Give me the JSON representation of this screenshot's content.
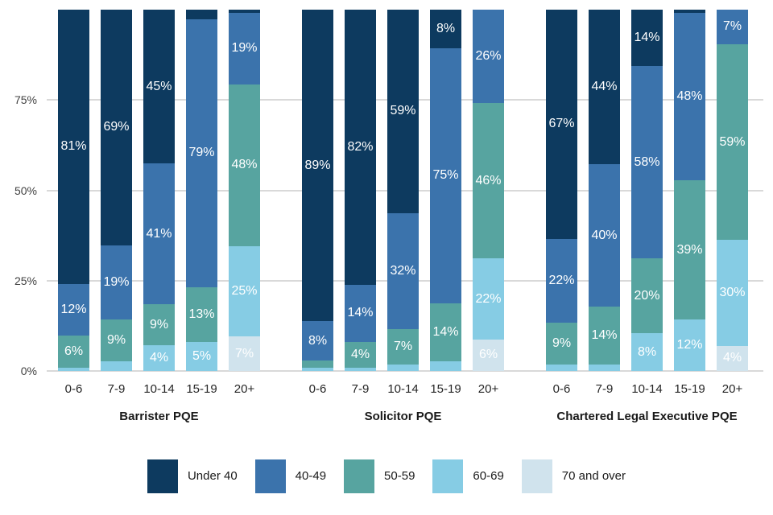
{
  "chart_data": {
    "type": "bar",
    "stacked": true,
    "orientation": "vertical",
    "unit": "%",
    "ylim": [
      0,
      100
    ],
    "grid": true,
    "legend_position": "bottom",
    "yticks": [
      {
        "label": "0%",
        "value": 0
      },
      {
        "label": "25%",
        "value": 25
      },
      {
        "label": "50%",
        "value": 50
      },
      {
        "label": "75%",
        "value": 75
      }
    ],
    "bands": [
      {
        "name": "Under 40",
        "color": "#0d3a5f"
      },
      {
        "name": "40-49",
        "color": "#3b73ac"
      },
      {
        "name": "50-59",
        "color": "#57a4a0"
      },
      {
        "name": "60-69",
        "color": "#86cce4"
      },
      {
        "name": "70 and over",
        "color": "#d0e3ed"
      }
    ],
    "groups": [
      {
        "title": "Barrister PQE",
        "bars": [
          {
            "category": "0-6",
            "segments": [
              {
                "band": 0,
                "value": 81,
                "label": "81%"
              },
              {
                "band": 1,
                "value": 12,
                "label": "12%"
              },
              {
                "band": 2,
                "value": 6,
                "label": "6%"
              },
              {
                "band": 3,
                "value": 1,
                "label": ""
              }
            ]
          },
          {
            "category": "7-9",
            "segments": [
              {
                "band": 0,
                "value": 69,
                "label": "69%"
              },
              {
                "band": 1,
                "value": 19,
                "label": "19%"
              },
              {
                "band": 2,
                "value": 9,
                "label": "9%"
              },
              {
                "band": 3,
                "value": 3,
                "label": ""
              }
            ]
          },
          {
            "category": "10-14",
            "segments": [
              {
                "band": 0,
                "value": 45,
                "label": "45%"
              },
              {
                "band": 1,
                "value": 41,
                "label": "41%"
              },
              {
                "band": 2,
                "value": 9,
                "label": "9%"
              },
              {
                "band": 3,
                "value": 4,
                "label": "4%"
              }
            ]
          },
          {
            "category": "15-19",
            "segments": [
              {
                "band": 0,
                "value": 3,
                "label": ""
              },
              {
                "band": 1,
                "value": 79,
                "label": "79%"
              },
              {
                "band": 2,
                "value": 13,
                "label": "13%"
              },
              {
                "band": 3,
                "value": 5,
                "label": "5%"
              }
            ]
          },
          {
            "category": "20+",
            "segments": [
              {
                "band": 0,
                "value": 1,
                "label": ""
              },
              {
                "band": 1,
                "value": 19,
                "label": "19%"
              },
              {
                "band": 2,
                "value": 48,
                "label": "48%"
              },
              {
                "band": 3,
                "value": 25,
                "label": "25%"
              },
              {
                "band": 4,
                "value": 7,
                "label": "7%"
              }
            ]
          }
        ]
      },
      {
        "title": "Solicitor PQE",
        "bars": [
          {
            "category": "0-6",
            "segments": [
              {
                "band": 0,
                "value": 89,
                "label": "89%"
              },
              {
                "band": 1,
                "value": 8,
                "label": "8%"
              },
              {
                "band": 2,
                "value": 2,
                "label": ""
              },
              {
                "band": 3,
                "value": 1,
                "label": ""
              }
            ]
          },
          {
            "category": "7-9",
            "segments": [
              {
                "band": 0,
                "value": 82,
                "label": "82%"
              },
              {
                "band": 1,
                "value": 14,
                "label": "14%"
              },
              {
                "band": 2,
                "value": 4,
                "label": "4%"
              },
              {
                "band": 3,
                "value": 1,
                "label": ""
              }
            ]
          },
          {
            "category": "10-14",
            "segments": [
              {
                "band": 0,
                "value": 59,
                "label": "59%"
              },
              {
                "band": 1,
                "value": 32,
                "label": "32%"
              },
              {
                "band": 2,
                "value": 7,
                "label": "7%"
              },
              {
                "band": 3,
                "value": 2,
                "label": ""
              }
            ]
          },
          {
            "category": "15-19",
            "segments": [
              {
                "band": 0,
                "value": 8,
                "label": "8%"
              },
              {
                "band": 1,
                "value": 75,
                "label": "75%"
              },
              {
                "band": 2,
                "value": 14,
                "label": "14%"
              },
              {
                "band": 3,
                "value": 3,
                "label": ""
              }
            ]
          },
          {
            "category": "20+",
            "segments": [
              {
                "band": 1,
                "value": 26,
                "label": "26%"
              },
              {
                "band": 2,
                "value": 46,
                "label": "46%"
              },
              {
                "band": 3,
                "value": 22,
                "label": "22%"
              },
              {
                "band": 4,
                "value": 6,
                "label": "6%"
              }
            ]
          }
        ]
      },
      {
        "title": "Chartered Legal Executive PQE",
        "bars": [
          {
            "category": "0-6",
            "segments": [
              {
                "band": 0,
                "value": 67,
                "label": "67%"
              },
              {
                "band": 1,
                "value": 22,
                "label": "22%"
              },
              {
                "band": 2,
                "value": 9,
                "label": "9%"
              },
              {
                "band": 3,
                "value": 2,
                "label": ""
              }
            ]
          },
          {
            "category": "7-9",
            "segments": [
              {
                "band": 0,
                "value": 44,
                "label": "44%"
              },
              {
                "band": 1,
                "value": 40,
                "label": "40%"
              },
              {
                "band": 2,
                "value": 14,
                "label": "14%"
              },
              {
                "band": 3,
                "value": 2,
                "label": ""
              }
            ]
          },
          {
            "category": "10-14",
            "segments": [
              {
                "band": 0,
                "value": 14,
                "label": "14%"
              },
              {
                "band": 1,
                "value": 58,
                "label": "58%"
              },
              {
                "band": 2,
                "value": 20,
                "label": "20%"
              },
              {
                "band": 3,
                "value": 8,
                "label": "8%"
              }
            ]
          },
          {
            "category": "15-19",
            "segments": [
              {
                "band": 0,
                "value": 1,
                "label": ""
              },
              {
                "band": 1,
                "value": 48,
                "label": "48%"
              },
              {
                "band": 2,
                "value": 39,
                "label": "39%"
              },
              {
                "band": 3,
                "value": 12,
                "label": "12%"
              }
            ]
          },
          {
            "category": "20+",
            "segments": [
              {
                "band": 1,
                "value": 7,
                "label": "7%"
              },
              {
                "band": 2,
                "value": 59,
                "label": "59%"
              },
              {
                "band": 3,
                "value": 30,
                "label": "30%"
              },
              {
                "band": 4,
                "value": 4,
                "label": "4%"
              }
            ]
          }
        ]
      }
    ]
  },
  "colors": {
    "grid": "#d9d9d9",
    "axis_text": "#404040",
    "segment_label_text": "#ffffff",
    "background": "#ffffff"
  }
}
